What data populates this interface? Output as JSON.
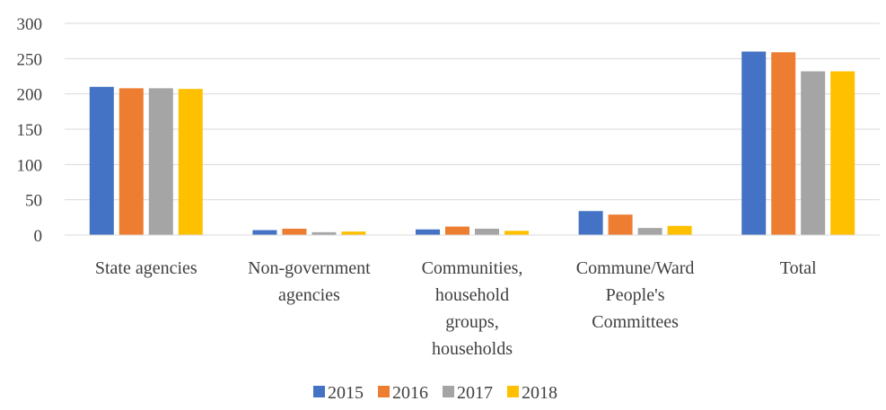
{
  "chart_data": {
    "type": "bar",
    "categories": [
      [
        "State agencies"
      ],
      [
        "Non-government",
        "agencies"
      ],
      [
        "Communities,",
        "household",
        "groups,",
        "households"
      ],
      [
        "Commune/Ward",
        "People's",
        "Committees"
      ],
      [
        "Total"
      ]
    ],
    "series": [
      {
        "name": "2015",
        "color": "#4472C4",
        "values": [
          210,
          7,
          8,
          34,
          260
        ]
      },
      {
        "name": "2016",
        "color": "#ED7D31",
        "values": [
          208,
          9,
          12,
          29,
          259
        ]
      },
      {
        "name": "2017",
        "color": "#A5A5A5",
        "values": [
          208,
          4,
          9,
          10,
          232
        ]
      },
      {
        "name": "2018",
        "color": "#FFC000",
        "values": [
          207,
          5,
          6,
          13,
          232
        ]
      }
    ],
    "y_ticks": [
      "0",
      "50",
      "100",
      "150",
      "200",
      "250",
      "300"
    ],
    "ylim": [
      0,
      300
    ],
    "grid": true,
    "legend_position": "bottom"
  }
}
